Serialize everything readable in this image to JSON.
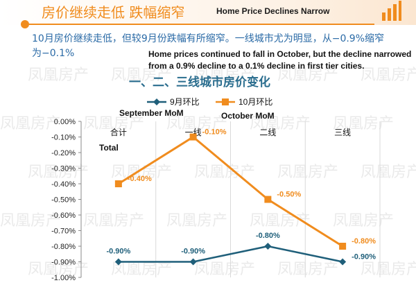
{
  "header": {
    "title_cn": "房价继续走低 跌幅缩窄",
    "title_en": "Home Price Declines Narrow"
  },
  "summary": {
    "text_cn": "10月房价继续走低，但较9月份跌幅有所缩窄。一线城市尤为明显，从−0.9%缩窄为−0.1%",
    "text_en": "Home prices continued to fall in October, but the decline narrowed from a 0.9%  decline to a 0.1% decline in first tier cities."
  },
  "annotations": {
    "september": "September MoM",
    "october": "October MoM",
    "total": "Total"
  },
  "watermark": {
    "text": "凤凰房产"
  },
  "colors": {
    "accent": "#f08c1e",
    "september_series": "#1f5f7a",
    "october_series": "#f08c1e",
    "title_blue": "#2a6d8e",
    "grid": "#d9d9d9"
  },
  "chart_data": {
    "type": "line",
    "title": "一、二、三线城市房价变化",
    "categories": [
      "合计",
      "一线",
      "二线",
      "三线"
    ],
    "series": [
      {
        "name": "9月环比",
        "values": [
          -0.9,
          -0.9,
          -0.8,
          -0.9
        ],
        "labels": [
          "-0.90%",
          "-0.90%",
          "-0.80%",
          "-0.90%"
        ],
        "label_side": [
          "above",
          "above",
          "above",
          "right"
        ]
      },
      {
        "name": "10月环比",
        "values": [
          -0.4,
          -0.1,
          -0.5,
          -0.8
        ],
        "labels": [
          "-0.40%",
          "-0.10%",
          "-0.50%",
          "-0.80%"
        ],
        "label_side": [
          "right",
          "right",
          "right",
          "right"
        ]
      }
    ],
    "ylim": [
      -1.0,
      0.0
    ],
    "yticks": [
      "0.00%",
      "-0.10%",
      "-0.20%",
      "-0.30%",
      "-0.40%",
      "-0.50%",
      "-0.60%",
      "-0.70%",
      "-0.80%",
      "-0.90%",
      "-1.00%"
    ],
    "ytick_values": [
      0,
      -0.1,
      -0.2,
      -0.3,
      -0.4,
      -0.5,
      -0.6,
      -0.7,
      -0.8,
      -0.9,
      -1.0
    ],
    "xlabel": "",
    "ylabel": "",
    "grid": "vertical",
    "legend": "top"
  }
}
